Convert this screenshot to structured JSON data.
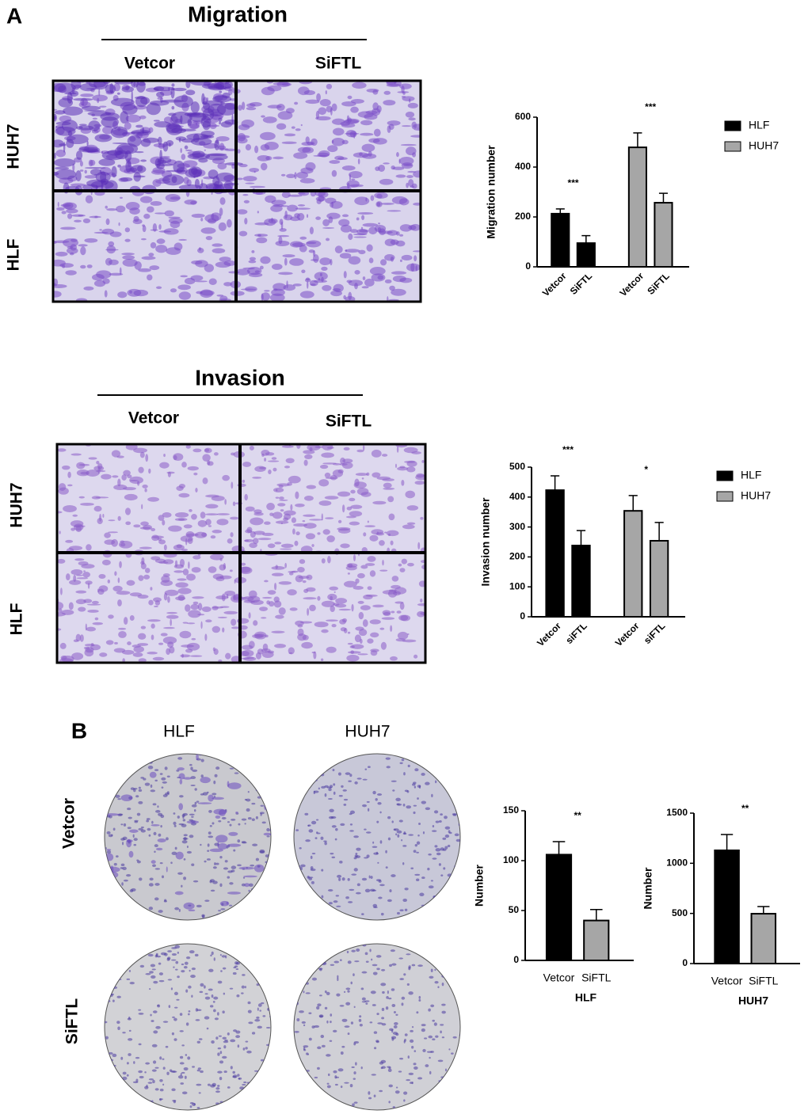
{
  "panels": {
    "labels": [
      "A",
      "B"
    ]
  },
  "migration": {
    "title": "Migration",
    "columns": [
      "Vetcor",
      "SiFTL"
    ],
    "rows": [
      "HUH7",
      "HLF"
    ]
  },
  "invasion": {
    "title": "Invasion",
    "columns": [
      "Vetcor",
      "SiFTL"
    ],
    "rows": [
      "HUH7",
      "HLF"
    ]
  },
  "colony": {
    "columns": [
      "HLF",
      "HUH7"
    ],
    "rows": [
      "Vetcor",
      "SiFTL"
    ]
  },
  "chart_data": [
    {
      "type": "bar",
      "ylabel": "Migration number",
      "categories": [
        "Vetcor",
        "SiFTL",
        "Vetcor",
        "SiFTL"
      ],
      "series": [
        {
          "name": "HLF",
          "color": "#000000",
          "values": [
            213,
            95,
            null,
            null
          ],
          "errors": [
            19,
            30,
            null,
            null
          ]
        },
        {
          "name": "HUH7",
          "color": "#a6a6a6",
          "values": [
            null,
            null,
            479,
            257
          ],
          "errors": [
            null,
            null,
            58,
            38
          ]
        }
      ],
      "annotations": [
        "***",
        "***"
      ],
      "ylim": [
        0,
        600
      ],
      "yticks": [
        0,
        200,
        400,
        600
      ],
      "xtick_rotation": -45,
      "legend": "right"
    },
    {
      "type": "bar",
      "ylabel": "Invasion number",
      "categories": [
        "Vetcor",
        "siFTL",
        "Vetcor",
        "siFTL"
      ],
      "series": [
        {
          "name": "HLF",
          "color": "#000000",
          "values": [
            423,
            238,
            null,
            null
          ],
          "errors": [
            48,
            50,
            null,
            null
          ]
        },
        {
          "name": "HUH7",
          "color": "#a6a6a6",
          "values": [
            null,
            null,
            354,
            254
          ],
          "errors": [
            null,
            null,
            51,
            61
          ]
        }
      ],
      "annotations": [
        "***",
        "*"
      ],
      "ylim": [
        0,
        500
      ],
      "yticks": [
        0,
        100,
        200,
        300,
        400,
        500
      ],
      "xtick_rotation": -45,
      "legend": "right"
    },
    {
      "type": "bar",
      "ylabel": "Number",
      "xlabel": "HLF",
      "categories": [
        "Vetcor",
        "SiFTL"
      ],
      "values": [
        106,
        40
      ],
      "errors": [
        13,
        11
      ],
      "colors": [
        "#000000",
        "#a6a6a6"
      ],
      "annotations": [
        "**"
      ],
      "ylim": [
        0,
        150
      ],
      "yticks": [
        0,
        50,
        100,
        150
      ],
      "xtick_rotation": 0
    },
    {
      "type": "bar",
      "ylabel": "Number",
      "xlabel": "HUH7",
      "categories": [
        "Vetcor",
        "SiFTL"
      ],
      "values": [
        1129,
        497
      ],
      "errors": [
        158,
        71
      ],
      "colors": [
        "#000000",
        "#a6a6a6"
      ],
      "annotations": [
        "**"
      ],
      "ylim": [
        0,
        1500
      ],
      "yticks": [
        0,
        500,
        1000,
        1500
      ],
      "xtick_rotation": 0
    }
  ]
}
